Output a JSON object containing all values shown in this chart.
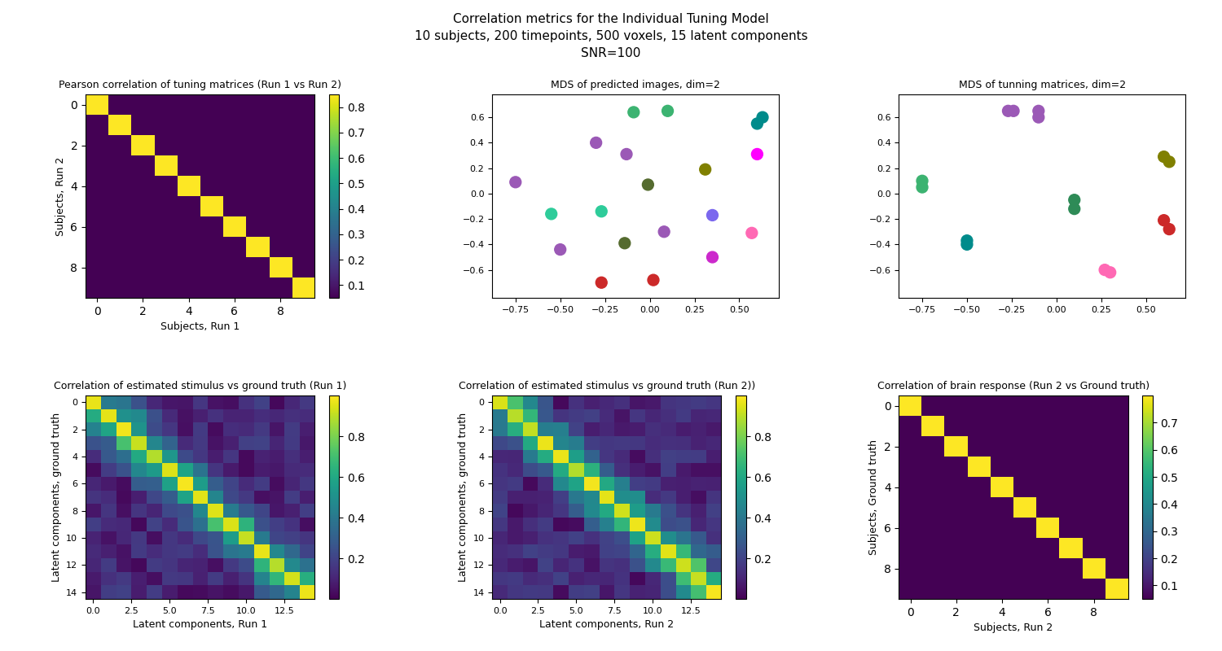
{
  "title_line1": "Correlation metrics for the Individual Tuning Model",
  "title_line2": "10 subjects, 200 timepoints, 500 voxels, 15 latent components",
  "title_line3": "SNR=100",
  "n_subjects": 10,
  "n_components": 15,
  "subplot_titles": [
    "Pearson correlation of tuning matrices (Run 1 vs Run 2)",
    "MDS of predicted images, dim=2",
    "MDS of tunning matrices, dim=2",
    "Correlation of estimated stimulus vs ground truth (Run 1)",
    "Correlation of estimated stimulus vs ground truth (Run 2))",
    "Correlation of brain response (Run 2 vs Ground truth)"
  ],
  "cmap_heatmap": "viridis",
  "subject_corr_diag": 0.85,
  "subject_corr_off": 0.05,
  "mds_predicted_x": [
    -0.75,
    -0.55,
    -0.27,
    -0.13,
    -0.09,
    -0.01,
    -0.27,
    0.08,
    0.35,
    0.6,
    -0.5,
    -0.3,
    -0.14,
    0.02,
    0.1,
    0.31,
    0.35,
    0.57,
    0.6,
    0.63
  ],
  "mds_predicted_y": [
    0.09,
    -0.16,
    -0.14,
    0.31,
    0.64,
    0.07,
    -0.7,
    -0.3,
    -0.5,
    0.55,
    -0.44,
    0.4,
    -0.39,
    -0.68,
    0.65,
    0.19,
    -0.17,
    -0.31,
    0.31,
    0.6
  ],
  "mds_predicted_colors": [
    "#9B59B6",
    "#2ECC9A",
    "#2ECC9A",
    "#9B59B6",
    "#3CB371",
    "#556B2F",
    "#CC2929",
    "#9B59B6",
    "#CC29CC",
    "#008B8B",
    "#9B59B6",
    "#9B59B6",
    "#556B2F",
    "#CC2929",
    "#3CB371",
    "#808000",
    "#7B68EE",
    "#FF69B4",
    "#FF00FF",
    "#008B8B"
  ],
  "mds_tuning_x": [
    -0.75,
    -0.75,
    -0.5,
    -0.5,
    -0.27,
    -0.24,
    0.1,
    0.1,
    0.27,
    0.3,
    0.6,
    0.63,
    0.6,
    0.63,
    -0.1,
    -0.1
  ],
  "mds_tuning_y": [
    0.1,
    0.05,
    -0.37,
    -0.4,
    0.65,
    0.65,
    -0.05,
    -0.12,
    -0.6,
    -0.62,
    -0.21,
    -0.28,
    0.29,
    0.25,
    0.65,
    0.6
  ],
  "mds_tuning_colors": [
    "#3CB371",
    "#3CB371",
    "#008B8B",
    "#008B8B",
    "#9B59B6",
    "#9B59B6",
    "#2E8B57",
    "#2E8B57",
    "#FF69B4",
    "#FF69B4",
    "#CC2929",
    "#CC2929",
    "#808000",
    "#808000",
    "#9B59B6",
    "#9B59B6"
  ],
  "brain_corr_diag": 0.8,
  "brain_corr_off": 0.05,
  "figsize": [
    15.0,
    8.0
  ],
  "dpi": 100
}
